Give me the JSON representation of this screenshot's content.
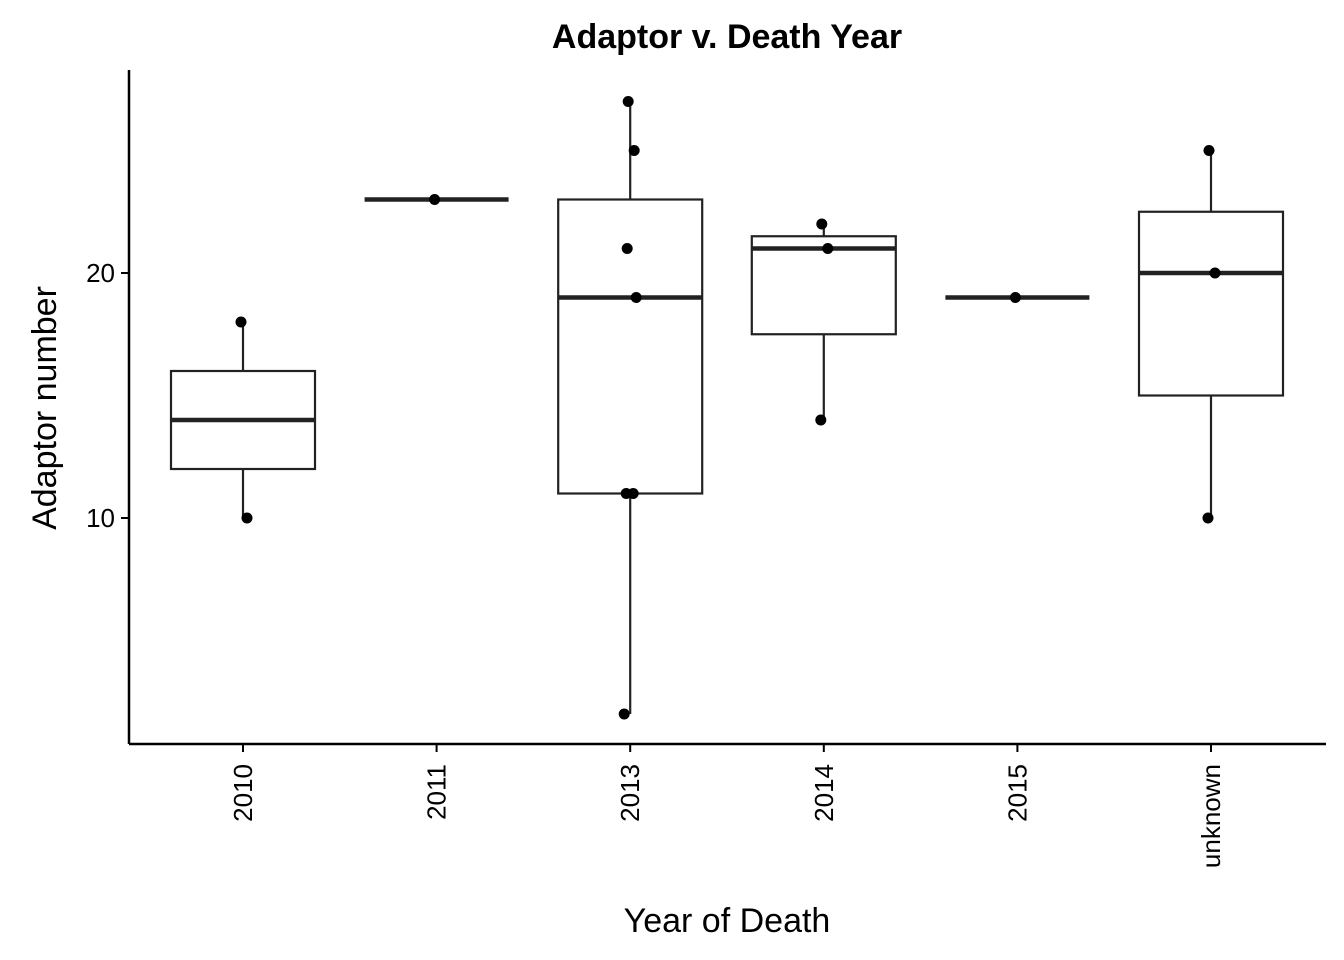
{
  "chart_data": {
    "type": "box",
    "title": "Adaptor v. Death Year",
    "xlabel": "Year of Death",
    "ylabel": "Adaptor number",
    "ylim": [
      1,
      28.5
    ],
    "yticks": [
      10,
      20
    ],
    "categories": [
      "2010",
      "2011",
      "2013",
      "2014",
      "2015",
      "unknown"
    ],
    "boxes": [
      {
        "category": "2010",
        "lower_whisker": 10,
        "q1": 12,
        "median": 14,
        "q3": 16,
        "upper_whisker": 18
      },
      {
        "category": "2011",
        "lower_whisker": 23,
        "q1": 23,
        "median": 23,
        "q3": 23,
        "upper_whisker": 23
      },
      {
        "category": "2013",
        "lower_whisker": 2,
        "q1": 11,
        "median": 19,
        "q3": 23,
        "upper_whisker": 27
      },
      {
        "category": "2014",
        "lower_whisker": 14,
        "q1": 17.5,
        "median": 21,
        "q3": 21.5,
        "upper_whisker": 22
      },
      {
        "category": "2015",
        "lower_whisker": 19,
        "q1": 19,
        "median": 19,
        "q3": 19,
        "upper_whisker": 19
      },
      {
        "category": "unknown",
        "lower_whisker": 10,
        "q1": 15,
        "median": 20,
        "q3": 22.5,
        "upper_whisker": 25
      }
    ],
    "points": [
      {
        "category": "2010",
        "values": [
          18,
          10
        ]
      },
      {
        "category": "2011",
        "values": [
          23
        ]
      },
      {
        "category": "2013",
        "values": [
          27,
          25,
          21,
          19,
          11,
          11,
          2
        ]
      },
      {
        "category": "2014",
        "values": [
          22,
          21,
          14
        ]
      },
      {
        "category": "2015",
        "values": [
          19
        ]
      },
      {
        "category": "unknown",
        "values": [
          25,
          20,
          10
        ]
      }
    ],
    "grid": false,
    "legend": "none"
  }
}
